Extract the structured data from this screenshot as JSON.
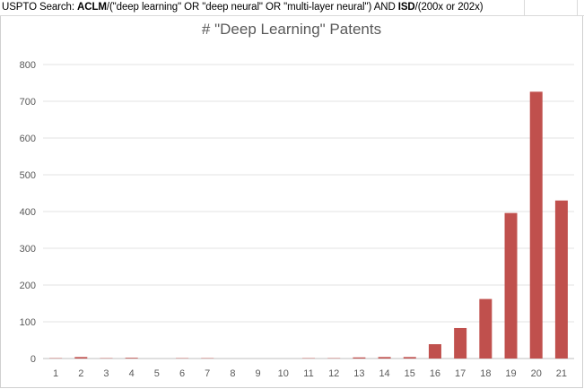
{
  "header": {
    "prefix": "USPTO Search: ",
    "field1": "ACLM",
    "query1": "/(\"deep learning\" OR \"deep neural\" OR \"multi-layer neural\") AND ",
    "field2": "ISD",
    "query2": "/(200x or 202x)"
  },
  "chart_data": {
    "type": "bar",
    "title": "# \"Deep Learning\" Patents",
    "xlabel": "",
    "ylabel": "",
    "categories": [
      "1",
      "2",
      "3",
      "4",
      "5",
      "6",
      "7",
      "8",
      "9",
      "10",
      "11",
      "12",
      "13",
      "14",
      "15",
      "16",
      "17",
      "18",
      "19",
      "20",
      "21"
    ],
    "values": [
      1,
      4,
      1,
      2,
      0,
      1,
      1,
      0,
      0,
      0,
      1,
      1,
      3,
      4,
      4,
      39,
      83,
      162,
      396,
      726,
      430
    ],
    "ylim": [
      0,
      800
    ],
    "yticks": [
      0,
      100,
      200,
      300,
      400,
      500,
      600,
      700,
      800
    ],
    "grid": true,
    "legend": "none",
    "bar_color": "#c0504d"
  }
}
